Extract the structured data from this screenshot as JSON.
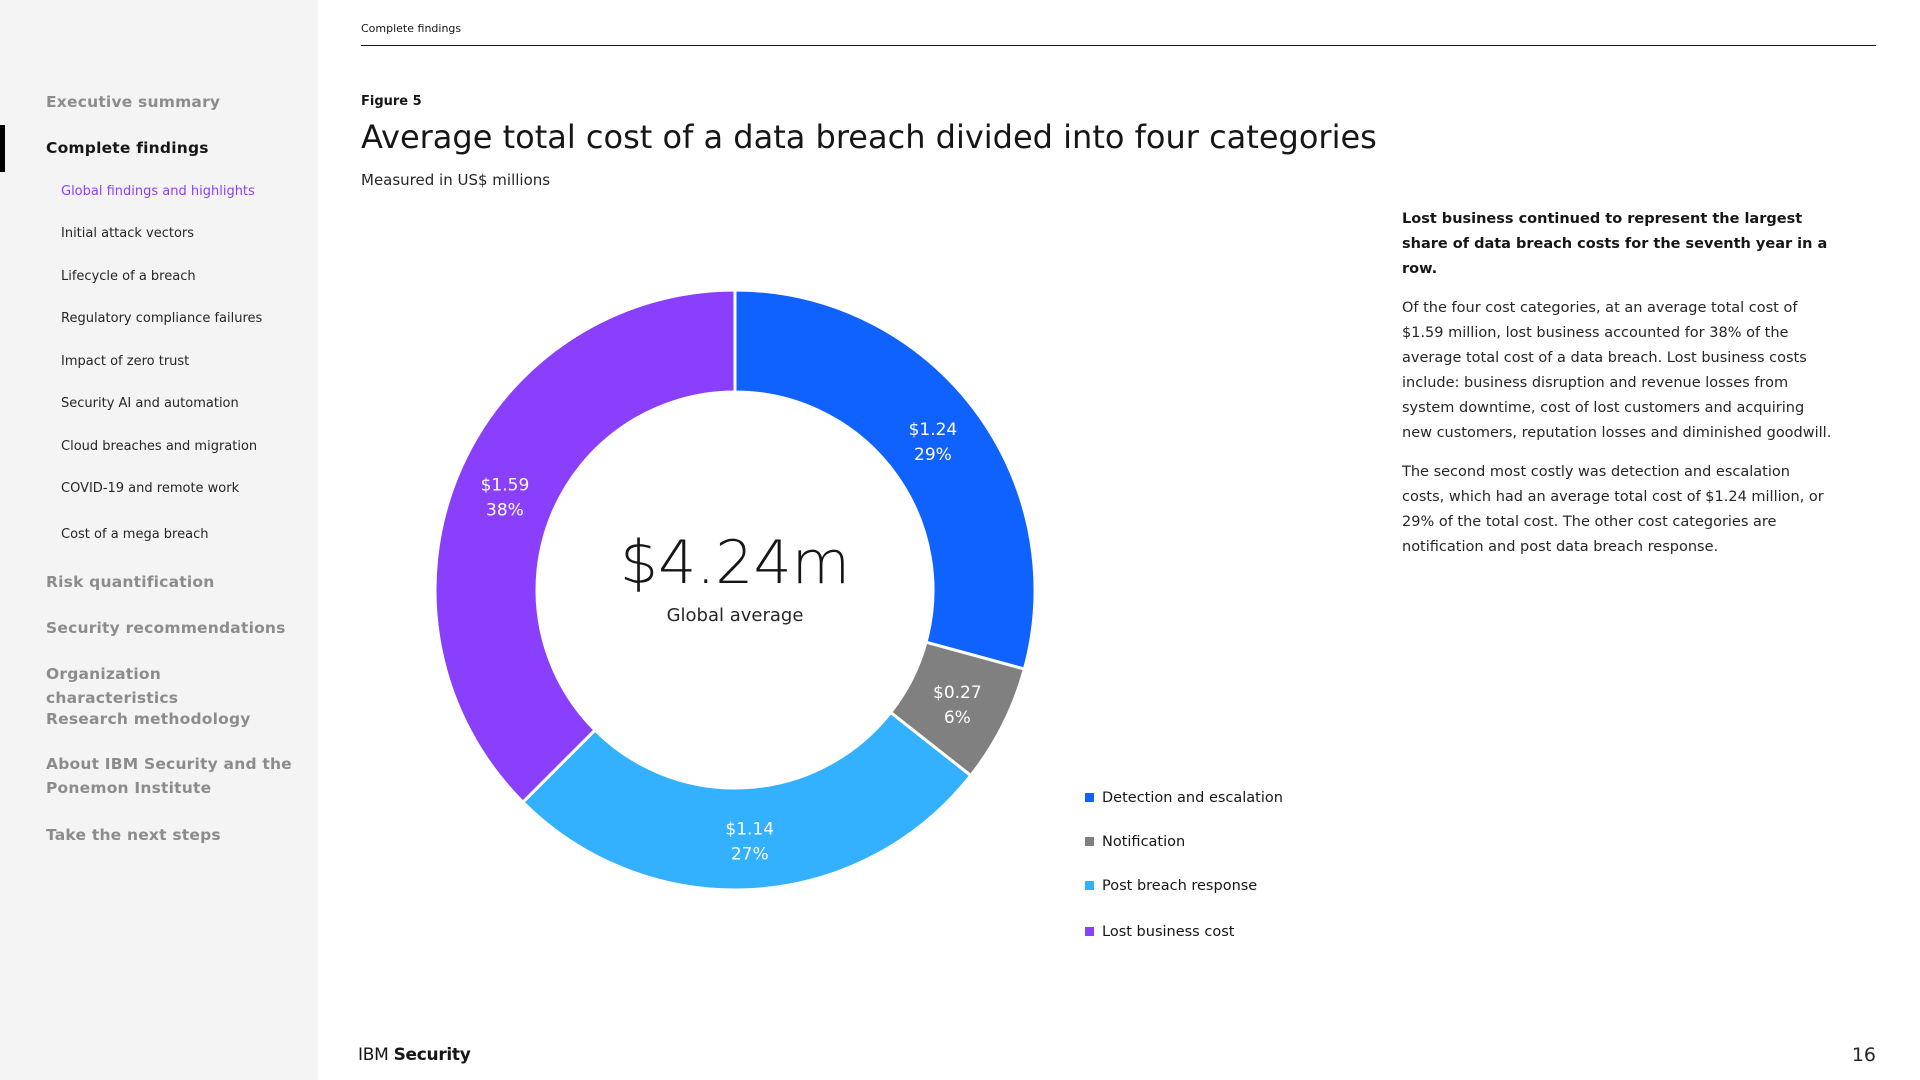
{
  "sidebar": {
    "items": [
      {
        "label": "Executive summary",
        "active": false
      },
      {
        "label": "Complete findings",
        "active": true
      },
      {
        "label": "Risk quantification",
        "active": false
      },
      {
        "label": "Security recommendations",
        "active": false
      },
      {
        "label": "Organization characteristics",
        "active": false
      },
      {
        "label": "Research methodology",
        "active": false
      },
      {
        "label": "About IBM Security and the Ponemon Institute",
        "active": false
      },
      {
        "label": "Take the next steps",
        "active": false
      }
    ],
    "subitems": [
      {
        "label": "Global findings and highlights",
        "active": true
      },
      {
        "label": "Initial attack vectors",
        "active": false
      },
      {
        "label": "Lifecycle of a breach",
        "active": false
      },
      {
        "label": "Regulatory compliance failures",
        "active": false
      },
      {
        "label": "Impact of zero trust",
        "active": false
      },
      {
        "label": "Security AI and automation",
        "active": false
      },
      {
        "label": "Cloud breaches and migration",
        "active": false
      },
      {
        "label": "COVID-19 and remote work",
        "active": false
      },
      {
        "label": "Cost of a mega breach",
        "active": false
      }
    ]
  },
  "header": {
    "breadcrumb": "Complete findings"
  },
  "figure": {
    "label": "Figure 5"
  },
  "chart_data": {
    "type": "pie",
    "title": "Average total cost of a data breach divided into four categories",
    "subtitle": "Measured in US$ millions",
    "center_value": "$4.24m",
    "center_label": "Global average",
    "categories": [
      "Detection and escalation",
      "Notification",
      "Post breach response",
      "Lost business cost"
    ],
    "values": [
      1.24,
      0.27,
      1.14,
      1.59
    ],
    "value_labels": [
      "$1.24",
      "$0.27",
      "$1.14",
      "$1.59"
    ],
    "percent_labels": [
      "29%",
      "6%",
      "27%",
      "38%"
    ],
    "colors": [
      "#0f62fe",
      "#808080",
      "#33b1ff",
      "#8a3ffc"
    ],
    "legend_position": "bottom-right"
  },
  "text": {
    "lead": "Lost business continued to represent the largest share of data breach costs for the seventh year in a row.",
    "paragraphs": [
      "Of the four cost categories, at an average total cost of $1.59 million, lost business accounted for 38% of the average total cost of a data breach. Lost business costs include: business disruption and revenue losses from system downtime, cost of lost customers and acquiring new customers, reputation losses and diminished goodwill.",
      "The second most costly was detection and escalation costs, which had an average total cost of $1.24 million, or 29% of the total cost. The other cost categories are notification and post data breach response."
    ]
  },
  "footer": {
    "brand_a": "IBM",
    "brand_b": "Security",
    "page_number": "16"
  }
}
